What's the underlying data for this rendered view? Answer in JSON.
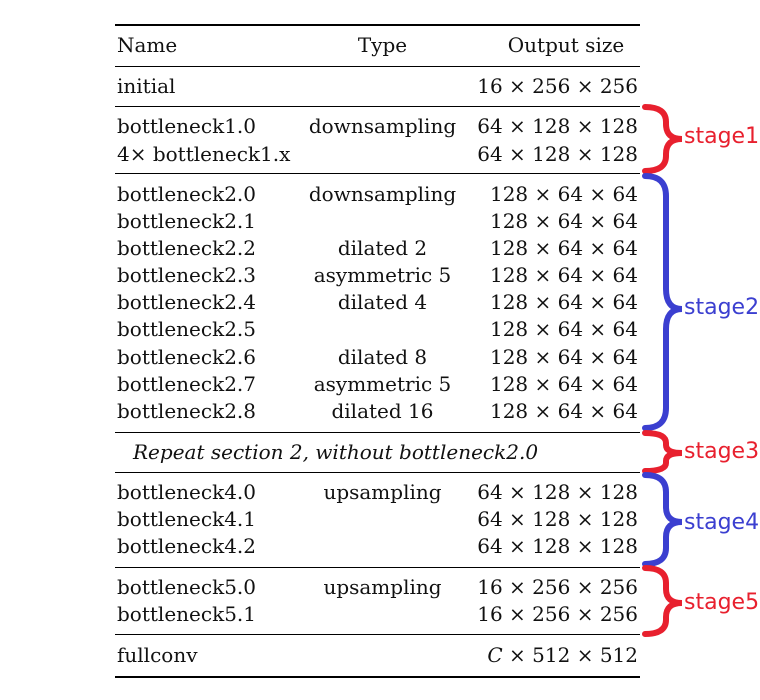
{
  "table": {
    "header": {
      "name": "Name",
      "type": "Type",
      "output": "Output size"
    },
    "sections": [
      {
        "rows": [
          {
            "name": "initial",
            "type": "",
            "output": "16 × 256 × 256"
          }
        ]
      },
      {
        "rows": [
          {
            "name": "bottleneck1.0",
            "type": "downsampling",
            "output": "64 × 128 × 128"
          },
          {
            "name": "4× bottleneck1.x",
            "type": "",
            "output": "64 × 128 × 128"
          }
        ]
      },
      {
        "rows": [
          {
            "name": "bottleneck2.0",
            "type": "downsampling",
            "output": "128 × 64 × 64"
          },
          {
            "name": "bottleneck2.1",
            "type": "",
            "output": "128 × 64 × 64"
          },
          {
            "name": "bottleneck2.2",
            "type": "dilated 2",
            "output": "128 × 64 × 64"
          },
          {
            "name": "bottleneck2.3",
            "type": "asymmetric 5",
            "output": "128 × 64 × 64"
          },
          {
            "name": "bottleneck2.4",
            "type": "dilated 4",
            "output": "128 × 64 × 64"
          },
          {
            "name": "bottleneck2.5",
            "type": "",
            "output": "128 × 64 × 64"
          },
          {
            "name": "bottleneck2.6",
            "type": "dilated 8",
            "output": "128 × 64 × 64"
          },
          {
            "name": "bottleneck2.7",
            "type": "asymmetric 5",
            "output": "128 × 64 × 64"
          },
          {
            "name": "bottleneck2.8",
            "type": "dilated 16",
            "output": "128 × 64 × 64"
          }
        ]
      },
      {
        "repeat_text": "Repeat section 2, without bottleneck2.0"
      },
      {
        "rows": [
          {
            "name": "bottleneck4.0",
            "type": "upsampling",
            "output": "64 × 128 × 128"
          },
          {
            "name": "bottleneck4.1",
            "type": "",
            "output": "64 × 128 × 128"
          },
          {
            "name": "bottleneck4.2",
            "type": "",
            "output": "64 × 128 × 128"
          }
        ]
      },
      {
        "rows": [
          {
            "name": "bottleneck5.0",
            "type": "upsampling",
            "output": "16 × 256 × 256"
          },
          {
            "name": "bottleneck5.1",
            "type": "",
            "output": "16 × 256 × 256"
          }
        ]
      },
      {
        "rows": [
          {
            "name": "fullconv",
            "type": "",
            "output_var": "C",
            "output": " × 512 × 512"
          }
        ]
      }
    ]
  },
  "stages": [
    {
      "label": "stage1",
      "color": "#e8202e"
    },
    {
      "label": "stage2",
      "color": "#3b3fd0"
    },
    {
      "label": "stage3",
      "color": "#e8202e"
    },
    {
      "label": "stage4",
      "color": "#3b3fd0"
    },
    {
      "label": "stage5",
      "color": "#e8202e"
    }
  ]
}
